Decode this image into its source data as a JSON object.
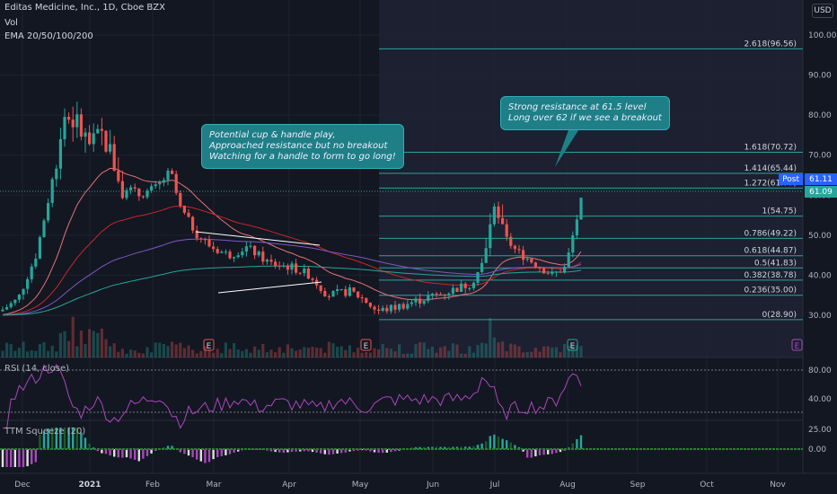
{
  "header": {
    "title_line": "Editas Medicine, Inc., 1D, Cboe BZX",
    "vol_label": "Vol",
    "ema_label": "EMA 20/50/100/200"
  },
  "currency_button": "USD",
  "price_axis_labels": [
    "100.00",
    "90.00",
    "80.00",
    "70.00",
    "60.00",
    "50.00",
    "40.00",
    "30.00"
  ],
  "price_tags": {
    "post_label": "Post",
    "post_price": "61.11",
    "last_price": "61.09",
    "post_color": "#2962ff",
    "last_color": "#26a69a"
  },
  "fib_levels": [
    {
      "label": "2.618(96.56)",
      "price": 96.56
    },
    {
      "label": "1.618(70.72)",
      "price": 70.72
    },
    {
      "label": "1.414(65.44)",
      "price": 65.44
    },
    {
      "label": "1.272(61.77)",
      "price": 61.77
    },
    {
      "label": "1(54.75)",
      "price": 54.75
    },
    {
      "label": "0.786(49.22)",
      "price": 49.22
    },
    {
      "label": "0.618(44.87)",
      "price": 44.87
    },
    {
      "label": "0.5(41.83)",
      "price": 41.83
    },
    {
      "label": "0.382(38.78)",
      "price": 38.78
    },
    {
      "label": "0.236(35.00)",
      "price": 35.0
    },
    {
      "label": "0(28.90)",
      "price": 28.9
    }
  ],
  "callouts": {
    "left": [
      "Potential cup & handle play,",
      "Approached resistance but no breakout",
      "Watching for a handle to form to go long!"
    ],
    "right": [
      "Strong resistance at 61.5 level",
      "Long over 62 if we see a breakout"
    ]
  },
  "earnings_marker": "E",
  "rsi": {
    "title": "RSI (14, close)",
    "axis_labels": [
      "80.00",
      "40.00"
    ],
    "line_color": "#ab47bc"
  },
  "ttm": {
    "title": "TTM Squeeze (20)",
    "axis_labels": [
      "25.00",
      "0.00"
    ]
  },
  "time_axis_labels": [
    "Dec",
    "2021",
    "Feb",
    "Mar",
    "Apr",
    "May",
    "Jun",
    "Jul",
    "Aug",
    "Sep",
    "Oct",
    "Nov"
  ],
  "colors": {
    "up": "#26a69a",
    "down": "#ef5350",
    "ema20": "#e57373",
    "ema50": "#c62828",
    "ema100": "#7e57c2",
    "ema200": "#26a69a",
    "fib_line": "#26a69a",
    "callout_bg": "#1e7f86"
  },
  "chart_data": {
    "type": "candlestick",
    "title": "Editas Medicine, Inc., 1D, Cboe BZX",
    "ylim": [
      25,
      105
    ],
    "x": [
      "Dec",
      "2021",
      "Feb",
      "Mar",
      "Apr",
      "May",
      "Jun",
      "Jul",
      "Aug"
    ],
    "series": [
      {
        "name": "close",
        "values": [
          30,
          70,
          62,
          48,
          40,
          32,
          38,
          55,
          61.09
        ]
      }
    ]
  }
}
